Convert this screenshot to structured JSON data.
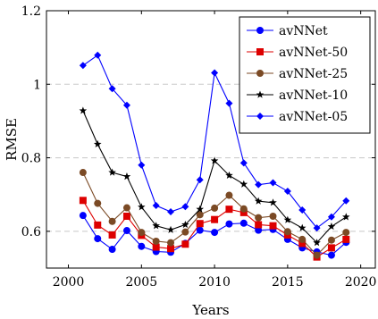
{
  "chart_data": {
    "type": "line",
    "title": "",
    "xlabel": "Years",
    "ylabel": "RMSE",
    "xlim": [
      1998.5,
      2021
    ],
    "ylim": [
      0.5,
      1.2
    ],
    "xticks": [
      "2000",
      "2005",
      "2010",
      "2015",
      "2020"
    ],
    "xtick_values": [
      2000,
      2005,
      2010,
      2015,
      2020
    ],
    "yticks": [
      "0.6",
      "0.8",
      "1",
      "1.2"
    ],
    "ytick_values": [
      0.6,
      0.8,
      1.0,
      1.2
    ],
    "grid": "horizontal-dashed",
    "legend_position": "top-right",
    "x": [
      2001,
      2002,
      2003,
      2004,
      2005,
      2006,
      2007,
      2008,
      2009,
      2010,
      2011,
      2012,
      2013,
      2014,
      2015,
      2016,
      2017,
      2018,
      2019
    ],
    "series": [
      {
        "name": "avNNet",
        "color": "#0000ff",
        "marker": "circle",
        "values": [
          0.643,
          0.58,
          0.551,
          0.602,
          0.559,
          0.545,
          0.543,
          0.567,
          0.603,
          0.597,
          0.62,
          0.622,
          0.603,
          0.605,
          0.578,
          0.555,
          0.544,
          0.535,
          0.57
        ]
      },
      {
        "name": "avNNet-50",
        "color": "#dd0000",
        "marker": "square",
        "values": [
          0.684,
          0.617,
          0.59,
          0.641,
          0.589,
          0.557,
          0.553,
          0.565,
          0.621,
          0.632,
          0.66,
          0.651,
          0.618,
          0.615,
          0.59,
          0.567,
          0.53,
          0.555,
          0.578
        ]
      },
      {
        "name": "avNNet-25",
        "color": "#7b4a25",
        "marker": "circle",
        "values": [
          0.76,
          0.676,
          0.627,
          0.664,
          0.597,
          0.573,
          0.569,
          0.598,
          0.645,
          0.663,
          0.698,
          0.661,
          0.637,
          0.641,
          0.599,
          0.578,
          0.535,
          0.576,
          0.597
        ]
      },
      {
        "name": "avNNet-10",
        "color": "#000000",
        "marker": "star",
        "values": [
          0.928,
          0.837,
          0.76,
          0.749,
          0.666,
          0.615,
          0.604,
          0.618,
          0.66,
          0.792,
          0.752,
          0.728,
          0.682,
          0.678,
          0.631,
          0.609,
          0.569,
          0.613,
          0.639
        ]
      },
      {
        "name": "avNNet-05",
        "color": "#0000ff",
        "marker": "diamond",
        "values": [
          1.051,
          1.079,
          0.988,
          0.943,
          0.78,
          0.67,
          0.653,
          0.667,
          0.74,
          1.031,
          0.948,
          0.786,
          0.727,
          0.732,
          0.709,
          0.658,
          0.609,
          0.639,
          0.683
        ]
      }
    ]
  }
}
